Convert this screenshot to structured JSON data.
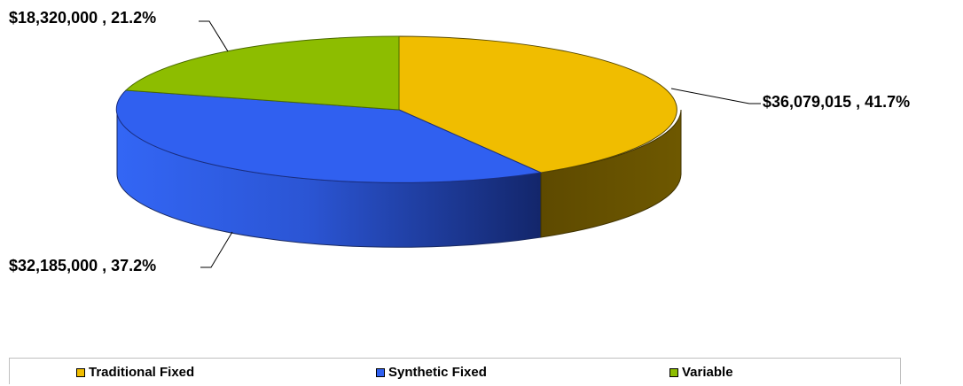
{
  "chart_data": {
    "type": "pie",
    "title": "",
    "three_d": true,
    "legend_position": "bottom",
    "slices": [
      {
        "name": "Traditional Fixed",
        "value": 36079015,
        "percent": 41.7,
        "label": "$36,079,015 , 41.7%",
        "color": "#f0bd00"
      },
      {
        "name": "Synthetic Fixed",
        "value": 32185000,
        "percent": 37.2,
        "label": "$32,185,000 , 37.2%",
        "color": "#3060f0"
      },
      {
        "name": "Variable",
        "value": 18320000,
        "percent": 21.2,
        "label": "$18,320,000 , 21.2%",
        "color": "#8dbd00"
      }
    ]
  }
}
